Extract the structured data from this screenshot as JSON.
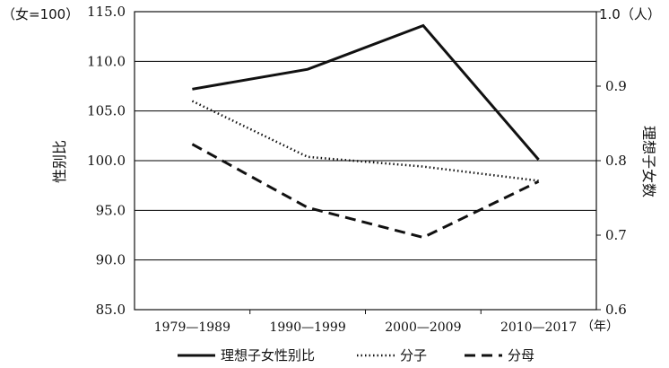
{
  "chart_data": {
    "type": "line",
    "categories": [
      "1979—1989",
      "1990—1999",
      "2000—2009",
      "2010—2017"
    ],
    "x_unit": "（年）",
    "left_axis": {
      "unit": "（女=100）",
      "label": "性别比",
      "ylim": [
        85.0,
        115.0
      ],
      "ticks": [
        "85.0",
        "90.0",
        "95.0",
        "100.0",
        "105.0",
        "110.0",
        "115.0"
      ]
    },
    "right_axis": {
      "unit": "1.0（人）",
      "label": "理想子女数",
      "ylim": [
        0.6,
        1.0
      ],
      "ticks": [
        "0.6",
        "0.7",
        "0.8",
        "0.9",
        "1.0"
      ]
    },
    "grid": "horizontal",
    "legend_position": "bottom",
    "series": [
      {
        "name": "理想子女性别比",
        "axis": "left",
        "style": "solid",
        "values": [
          107.2,
          109.2,
          113.6,
          100.1
        ]
      },
      {
        "name": "分子",
        "axis": "right",
        "style": "dotted",
        "values": [
          0.88,
          0.805,
          0.792,
          0.773
        ]
      },
      {
        "name": "分母",
        "axis": "right",
        "style": "dashed",
        "values": [
          0.822,
          0.737,
          0.697,
          0.772
        ]
      }
    ],
    "colors": {
      "line": "#111111",
      "grid": "#000000"
    }
  }
}
